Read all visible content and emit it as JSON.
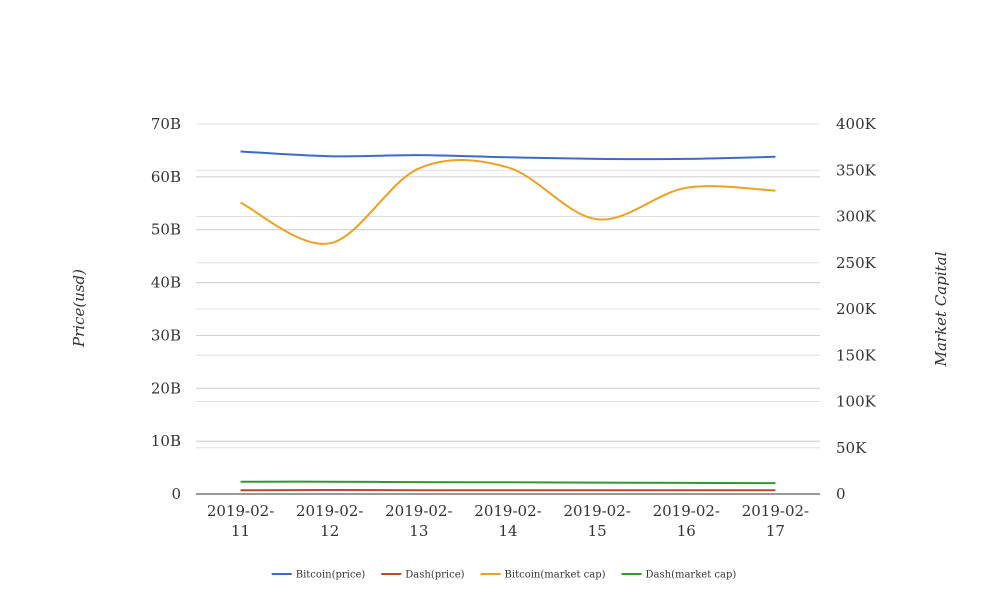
{
  "chart_data": {
    "type": "line",
    "title": "",
    "categories": [
      "2019-02-11",
      "2019-02-12",
      "2019-02-13",
      "2019-02-14",
      "2019-02-15",
      "2019-02-16",
      "2019-02-17"
    ],
    "category_display": [
      [
        "2019-02-",
        "11"
      ],
      [
        "2019-02-",
        "12"
      ],
      [
        "2019-02-",
        "13"
      ],
      [
        "2019-02-",
        "14"
      ],
      [
        "2019-02-",
        "15"
      ],
      [
        "2019-02-",
        "16"
      ],
      [
        "2019-02-",
        "17"
      ]
    ],
    "y_left": {
      "label": "Price(usd)",
      "ylim": [
        0,
        70000000000
      ],
      "ticks": [
        0,
        10000000000,
        20000000000,
        30000000000,
        40000000000,
        50000000000,
        60000000000,
        70000000000
      ],
      "tick_labels": [
        "0",
        "10B",
        "20B",
        "30B",
        "40B",
        "50B",
        "60B",
        "70B"
      ]
    },
    "y_right": {
      "label": "Market Capital",
      "ylim": [
        0,
        400000
      ],
      "ticks": [
        0,
        50000,
        100000,
        150000,
        200000,
        250000,
        300000,
        350000,
        400000
      ],
      "tick_labels": [
        "0",
        "50K",
        "100K",
        "150K",
        "200K",
        "250K",
        "300K",
        "350K",
        "400K"
      ]
    },
    "grid": true,
    "legend_position": "bottom",
    "series": [
      {
        "name": "Bitcoin(price)",
        "axis": "left",
        "color": "#3a6cc6",
        "values": [
          64800000000,
          63900000000,
          64100000000,
          63700000000,
          63400000000,
          63400000000,
          63800000000
        ]
      },
      {
        "name": "Dash(price)",
        "axis": "left",
        "color": "#c0462b",
        "values": [
          700000000,
          750000000,
          720000000,
          720000000,
          700000000,
          700000000,
          700000000
        ]
      },
      {
        "name": "Bitcoin(market cap)",
        "axis": "right",
        "color": "#f0a020",
        "values": [
          315000,
          271000,
          352000,
          353000,
          297000,
          331000,
          328000
        ]
      },
      {
        "name": "Dash(market cap)",
        "axis": "right",
        "color": "#2e9a2e",
        "values": [
          13300,
          13300,
          12800,
          12700,
          12300,
          12000,
          11700
        ]
      }
    ]
  }
}
